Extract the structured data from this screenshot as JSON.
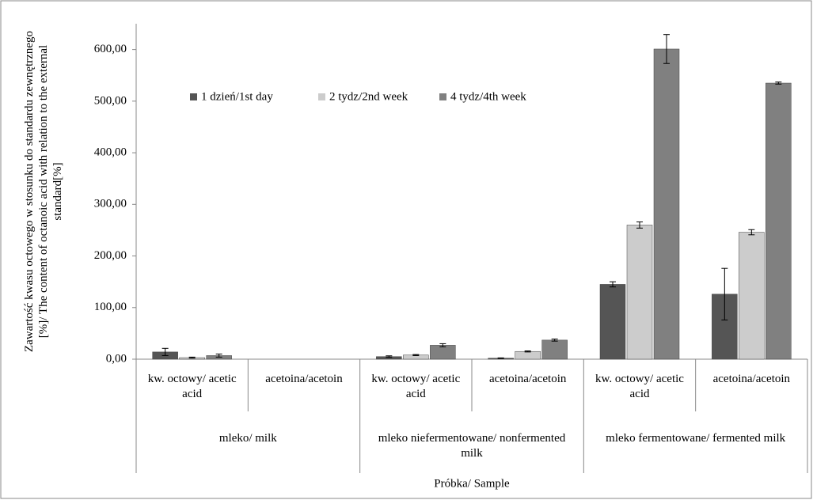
{
  "chart_data": {
    "type": "bar",
    "y_label": "Zawartość kwasu octowego w stosunku do standardu zewnętrznego [%]/ The content of octanoic acid with relation to the external standard[%]",
    "x_label": "Próbka/ Sample",
    "categories": [
      "kw. octowy/ acetic acid",
      "acetoina/acetoin",
      "kw. octowy/ acetic acid",
      "acetoina/acetoin",
      "kw. octowy/ acetic acid",
      "acetoina/acetoin"
    ],
    "category_groups": [
      "mleko/ milk",
      "mleko niefermentowane/ nonfermented milk",
      "mleko fermentowane/ fermented milk"
    ],
    "series": [
      {
        "name": "1 dzień/1st day",
        "color": "#555555",
        "values": [
          14,
          null,
          5,
          2,
          145,
          126
        ],
        "errors": [
          7,
          null,
          1.5,
          0.5,
          5,
          50
        ]
      },
      {
        "name": "2 tydz/2nd week",
        "color": "#cccccc",
        "values": [
          3,
          null,
          8,
          15,
          260,
          246
        ],
        "errors": [
          1,
          null,
          1,
          1,
          6,
          5
        ]
      },
      {
        "name": "4 tydz/4th week",
        "color": "#808080",
        "values": [
          7,
          null,
          27,
          37,
          601,
          535
        ],
        "errors": [
          3,
          null,
          3,
          2,
          28,
          2
        ]
      }
    ],
    "ylim": [
      0,
      650
    ],
    "yticks": [
      {
        "value": 0,
        "label": "0,00"
      },
      {
        "value": 100,
        "label": "100,00"
      },
      {
        "value": 200,
        "label": "200,00"
      },
      {
        "value": 300,
        "label": "300,00"
      },
      {
        "value": 400,
        "label": "400,00"
      },
      {
        "value": 500,
        "label": "500,00"
      },
      {
        "value": 600,
        "label": "600,00"
      }
    ],
    "legend": "top-left"
  }
}
